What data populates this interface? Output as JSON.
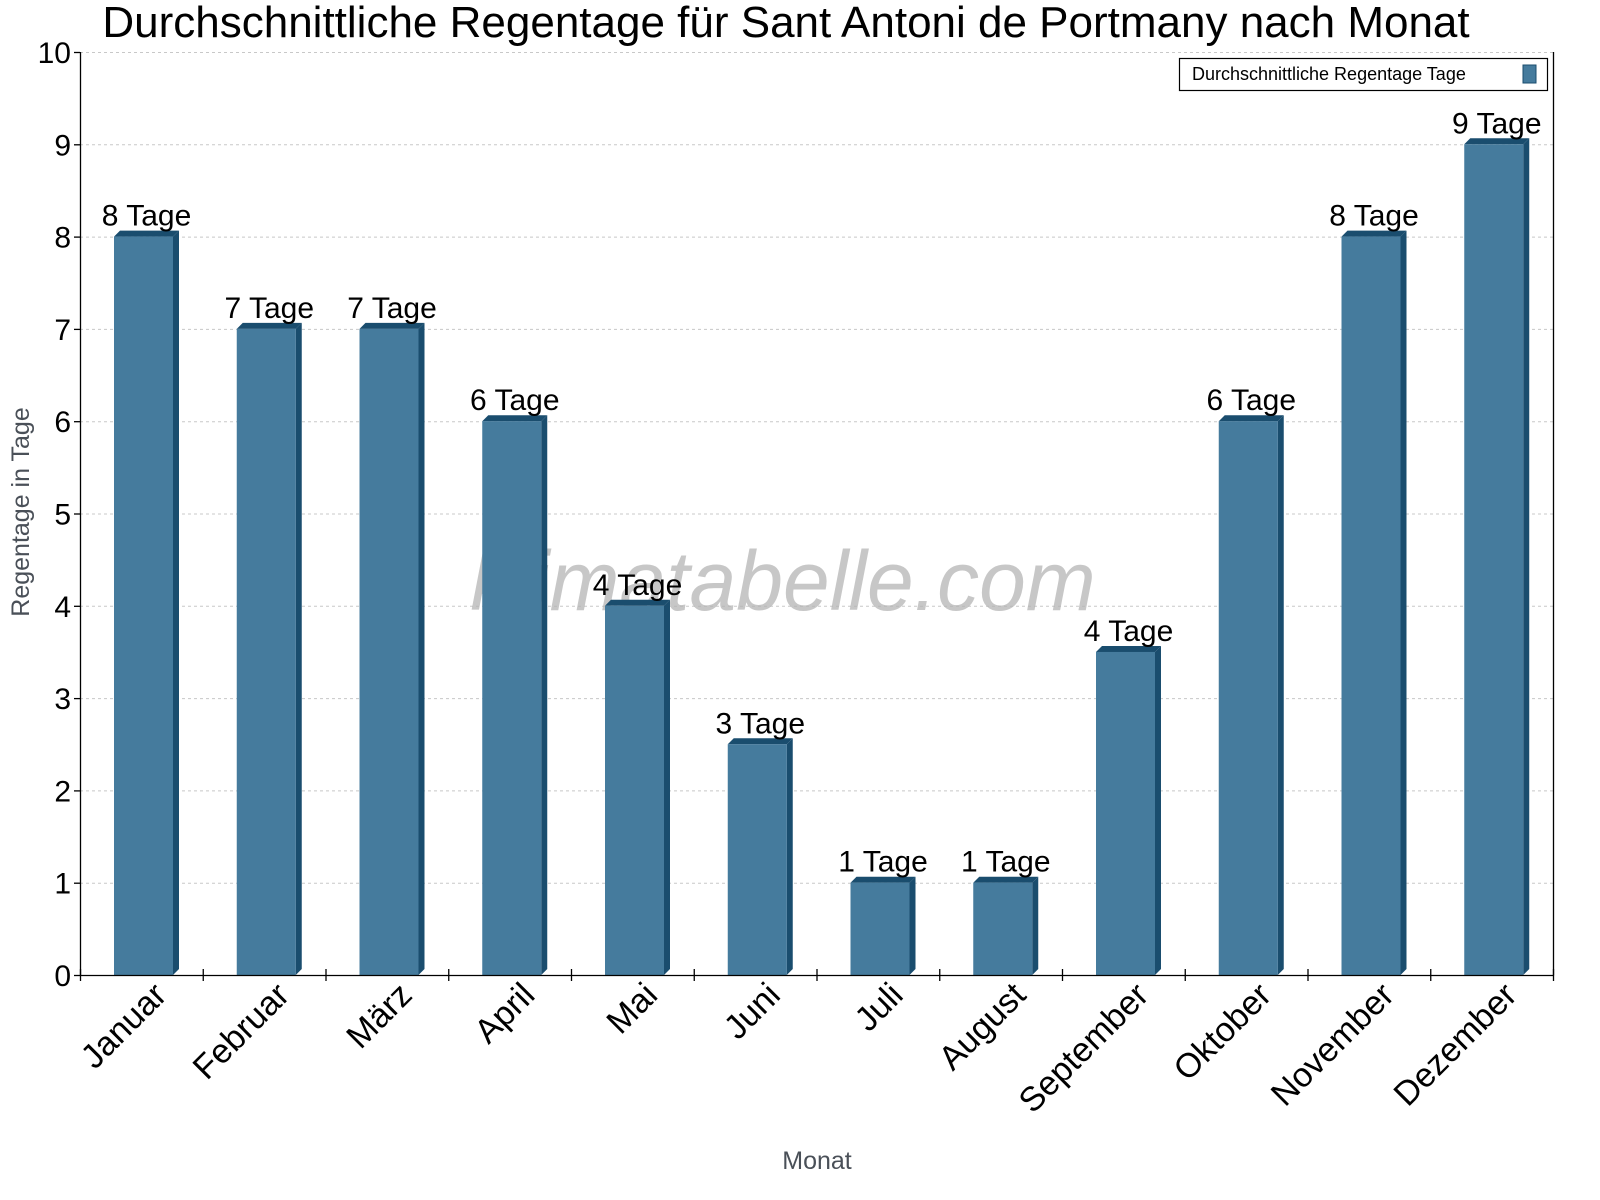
{
  "chart_data": {
    "type": "bar",
    "title": "Durchschnittliche Regentage für Sant Antoni de Portmany nach Monat",
    "xlabel": "Monat",
    "ylabel": "Regentage in Tage",
    "ylim": [
      0,
      10
    ],
    "yticks": [
      0,
      1,
      2,
      3,
      4,
      5,
      6,
      7,
      8,
      9,
      10
    ],
    "grid": true,
    "legend_position": "top-right",
    "categories": [
      "Januar",
      "Februar",
      "März",
      "April",
      "Mai",
      "Juni",
      "Juli",
      "August",
      "September",
      "Oktober",
      "November",
      "Dezember"
    ],
    "series": [
      {
        "name": "Durchschnittliche Regentage Tage",
        "color": "#457b9d",
        "side_color": "#1a4d6e",
        "values": [
          8,
          7,
          7,
          6,
          4,
          2.5,
          1,
          1,
          3.5,
          6,
          8,
          9
        ],
        "data_labels": [
          "8 Tage",
          "7 Tage",
          "7 Tage",
          "6 Tage",
          "4 Tage",
          "3 Tage",
          "1 Tage",
          "1 Tage",
          "4 Tage",
          "6 Tage",
          "8 Tage",
          "9 Tage"
        ]
      }
    ],
    "watermark": "klimatabelle.com"
  }
}
